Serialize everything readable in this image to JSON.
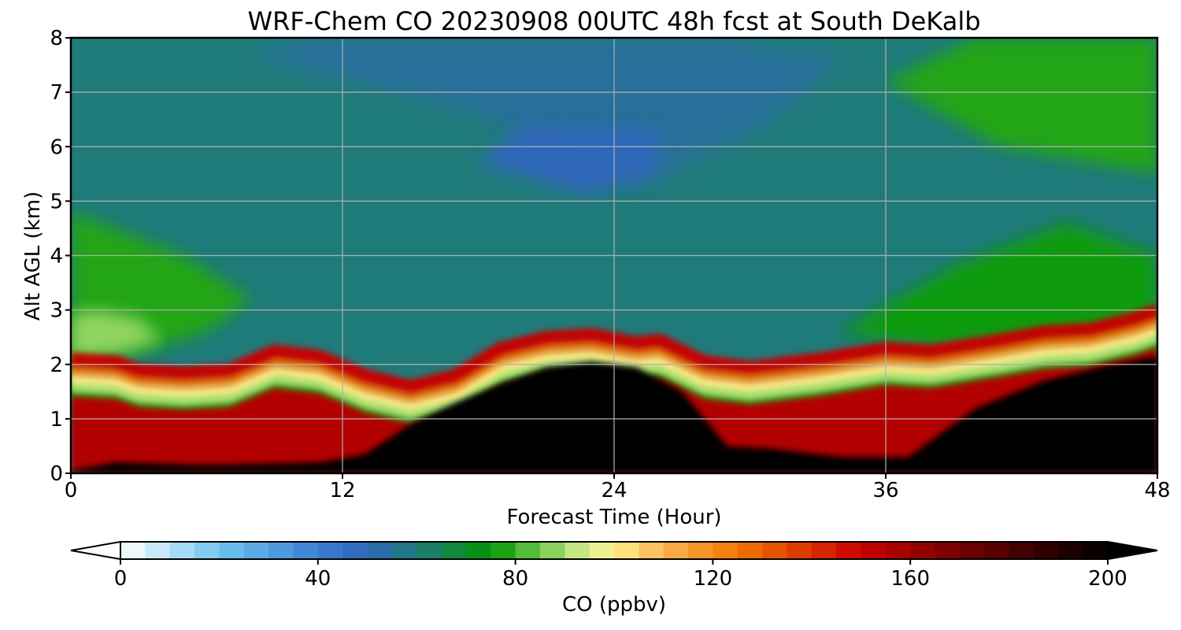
{
  "chart_data": {
    "type": "heatmap",
    "title": "WRF-Chem CO  20230908 00UTC 48h fcst at South DeKalb",
    "xlabel": "Forecast Time (Hour)",
    "ylabel": "Alt AGL (km)",
    "xlim": [
      0,
      48
    ],
    "ylim": [
      0,
      8
    ],
    "x_ticks": [
      "0",
      "12",
      "24",
      "36",
      "48"
    ],
    "y_ticks": [
      "0",
      "1",
      "2",
      "3",
      "4",
      "5",
      "6",
      "7",
      "8"
    ],
    "grid": true,
    "colorbar": {
      "label": "CO  (ppbv)",
      "range": [
        0,
        200
      ],
      "ticks": [
        "0",
        "40",
        "80",
        "120",
        "160",
        "200"
      ],
      "extend": "both",
      "colors": [
        [
          0,
          "#ffffff"
        ],
        [
          20,
          "#6ec5f0"
        ],
        [
          40,
          "#3c7fd2"
        ],
        [
          50,
          "#2d66b8"
        ],
        [
          60,
          "#1f7a7a"
        ],
        [
          75,
          "#009600"
        ],
        [
          85,
          "#6ec84a"
        ],
        [
          95,
          "#dff095"
        ],
        [
          100,
          "#fff08a"
        ],
        [
          110,
          "#fbb450"
        ],
        [
          125,
          "#f07800"
        ],
        [
          150,
          "#c80000"
        ],
        [
          175,
          "#600000"
        ],
        [
          200,
          "#000000"
        ]
      ]
    },
    "boundary_layer_top_km": {
      "hours": [
        0,
        2,
        3,
        5,
        7,
        9,
        11,
        13,
        15,
        17,
        19,
        21,
        23,
        25,
        26,
        28,
        30,
        33,
        36,
        38,
        41,
        43,
        45,
        47,
        48
      ],
      "heights": [
        1.8,
        1.75,
        1.6,
        1.55,
        1.6,
        1.95,
        1.85,
        1.5,
        1.3,
        1.5,
        2.0,
        2.2,
        2.25,
        2.1,
        2.15,
        1.75,
        1.65,
        1.8,
        2.0,
        1.95,
        2.15,
        2.3,
        2.35,
        2.55,
        2.7
      ]
    },
    "black_core_top_km": {
      "hours": [
        0,
        2,
        6,
        11,
        13,
        15,
        17,
        19,
        21,
        23,
        25,
        27,
        29,
        31,
        34,
        37,
        38,
        40,
        43,
        46,
        48
      ],
      "heights": [
        0.05,
        0.2,
        0.15,
        0.2,
        0.35,
        0.9,
        1.3,
        1.65,
        1.95,
        2.05,
        1.95,
        1.5,
        0.5,
        0.45,
        0.3,
        0.3,
        0.6,
        1.2,
        1.7,
        2.0,
        2.15
      ]
    },
    "upper_regions": [
      {
        "value": 55,
        "hours": [
          8,
          18,
          25,
          31,
          34,
          28,
          20,
          11
        ],
        "heights": [
          7.7,
          6.6,
          5.2,
          6.5,
          7.6,
          8.0,
          8.0,
          8.0
        ]
      },
      {
        "value": 50,
        "hours": [
          18,
          23,
          26,
          26,
          20
        ],
        "heights": [
          5.7,
          5.1,
          5.6,
          6.3,
          6.4
        ]
      },
      {
        "value": 78,
        "hours": [
          36,
          41,
          48,
          48,
          44,
          40
        ],
        "heights": [
          7.2,
          6.0,
          5.5,
          8.0,
          8.0,
          8.0
        ]
      },
      {
        "value": 76,
        "hours": [
          34,
          39,
          44,
          48,
          48,
          43,
          38
        ],
        "heights": [
          2.6,
          3.8,
          4.6,
          4.0,
          2.7,
          2.4,
          2.3
        ]
      },
      {
        "value": 78,
        "hours": [
          0,
          3,
          6,
          8,
          5,
          0
        ],
        "heights": [
          2.0,
          2.2,
          2.6,
          3.2,
          4.0,
          4.8
        ]
      },
      {
        "value": 88,
        "hours": [
          0,
          2,
          4,
          3,
          1,
          0
        ],
        "heights": [
          2.1,
          2.2,
          2.45,
          2.85,
          3.0,
          2.9
        ]
      }
    ]
  }
}
